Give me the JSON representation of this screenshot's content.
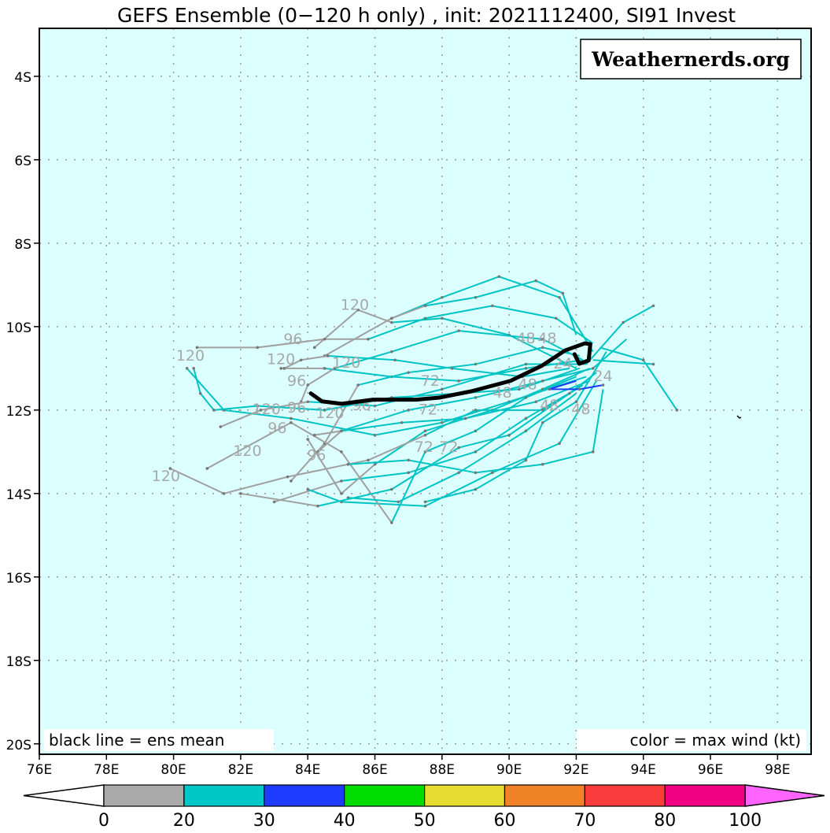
{
  "title": "GEFS Ensemble (0−120 h only) , init: 2021112400, SI91 Invest",
  "watermark": "Weathernerds.org",
  "legend_left": "black line = ens mean",
  "legend_right": "color = max wind (kt)",
  "colors": {
    "ocean": "#dcffff",
    "weak": "#a0a0a0",
    "cyan": "#00c4c4",
    "mean": "#000000",
    "label": "#a8a8a8"
  },
  "chart_data": {
    "type": "map-tracks",
    "lon_range": [
      76,
      99
    ],
    "lat_range_south": [
      2.85,
      20.25
    ],
    "lon_ticks": [
      "76E",
      "78E",
      "80E",
      "82E",
      "84E",
      "86E",
      "88E",
      "90E",
      "92E",
      "94E",
      "96E",
      "98E"
    ],
    "lat_ticks": [
      "4S",
      "6S",
      "8S",
      "10S",
      "12S",
      "14S",
      "16S",
      "18S",
      "20S"
    ],
    "grid": true,
    "colorbar": {
      "labels": [
        "0",
        "20",
        "30",
        "40",
        "50",
        "60",
        "70",
        "80",
        "100"
      ],
      "colors": [
        "#aaaaaa",
        "#00c8c8",
        "#1e3cff",
        "#00dc00",
        "#e6dc32",
        "#f08228",
        "#fa3c3c",
        "#f00082"
      ],
      "under": "#ffffff",
      "over": "#ff64ff"
    },
    "ens_mean": [
      [
        84.09,
        11.6
      ],
      [
        84.42,
        11.79
      ],
      [
        85.01,
        11.85
      ],
      [
        85.94,
        11.75
      ],
      [
        87.23,
        11.75
      ],
      [
        87.93,
        11.7
      ],
      [
        88.87,
        11.55
      ],
      [
        90.04,
        11.3
      ],
      [
        90.97,
        10.94
      ],
      [
        91.67,
        10.57
      ],
      [
        92.26,
        10.4
      ],
      [
        92.42,
        10.42
      ],
      [
        92.37,
        10.81
      ],
      [
        92.09,
        10.89
      ],
      [
        91.95,
        10.66
      ]
    ],
    "members": [
      {
        "pts": [
          [
            92.2,
            10.8
          ],
          [
            90.5,
            11.0
          ],
          [
            88.5,
            11.3
          ],
          [
            86.5,
            11.2
          ],
          [
            84.5,
            11.0
          ],
          [
            83.2,
            11.0
          ]
        ],
        "weak_from": 4
      },
      {
        "pts": [
          [
            92.0,
            11.0
          ],
          [
            90.0,
            10.2
          ],
          [
            88.0,
            9.8
          ],
          [
            86.5,
            9.9
          ],
          [
            85.5,
            9.6
          ],
          [
            84.2,
            10.5
          ]
        ],
        "weak_from": 3
      },
      {
        "pts": [
          [
            92.5,
            10.6
          ],
          [
            91.5,
            9.3
          ],
          [
            89.7,
            8.8
          ],
          [
            88.0,
            9.3
          ],
          [
            86.5,
            9.8
          ],
          [
            84.5,
            10.7
          ]
        ],
        "weak_from": 4
      },
      {
        "pts": [
          [
            92.3,
            11.2
          ],
          [
            90.0,
            11.8
          ],
          [
            88.0,
            12.3
          ],
          [
            86.0,
            12.6
          ],
          [
            83.5,
            12.2
          ],
          [
            81.5,
            12.0
          ],
          [
            80.4,
            11.0
          ]
        ],
        "weak_from": 9
      },
      {
        "pts": [
          [
            92.0,
            11.5
          ],
          [
            90.5,
            12.2
          ],
          [
            89.0,
            13.0
          ],
          [
            87.0,
            13.5
          ],
          [
            85.0,
            13.7
          ],
          [
            83.0,
            14.2
          ]
        ],
        "weak_from": 4
      },
      {
        "pts": [
          [
            92.6,
            11.3
          ],
          [
            91.5,
            12.8
          ],
          [
            89.5,
            13.5
          ],
          [
            87.5,
            14.3
          ],
          [
            85.0,
            14.2
          ],
          [
            84.0,
            13.9
          ]
        ],
        "weak_from": 9
      },
      {
        "pts": [
          [
            92.1,
            10.7
          ],
          [
            91.0,
            10.5
          ],
          [
            89.0,
            10.9
          ],
          [
            87.0,
            11.1
          ],
          [
            85.5,
            11.4
          ],
          [
            84.5,
            12.8
          ],
          [
            83.5,
            13.7
          ]
        ],
        "weak_from": 4
      },
      {
        "pts": [
          [
            92.4,
            11.0
          ],
          [
            91.0,
            11.5
          ],
          [
            89.5,
            12.0
          ],
          [
            87.5,
            12.5
          ],
          [
            86.0,
            13.3
          ],
          [
            85.0,
            14.0
          ],
          [
            84.0,
            12.7
          ]
        ],
        "weak_from": 4
      },
      {
        "pts": [
          [
            92.0,
            11.2
          ],
          [
            90.5,
            11.7
          ],
          [
            89.0,
            12.5
          ],
          [
            87.5,
            13.0
          ],
          [
            86.5,
            14.7
          ],
          [
            85.0,
            13.0
          ],
          [
            83.5,
            12.3
          ],
          [
            81.0,
            13.4
          ]
        ],
        "weak_from": 4
      },
      {
        "pts": [
          [
            92.2,
            11.4
          ],
          [
            91.0,
            12.0
          ],
          [
            89.0,
            12.0
          ],
          [
            87.5,
            12.6
          ],
          [
            85.8,
            13.2
          ],
          [
            83.4,
            13.6
          ],
          [
            81.5,
            14.0
          ],
          [
            79.9,
            13.4
          ]
        ],
        "weak_from": 3
      },
      {
        "pts": [
          [
            92.3,
            10.9
          ],
          [
            90.5,
            10.9
          ],
          [
            88.0,
            11.5
          ],
          [
            86.0,
            11.9
          ],
          [
            84.0,
            11.8
          ],
          [
            82.6,
            12.0
          ],
          [
            81.4,
            12.4
          ]
        ],
        "weak_from": 4
      },
      {
        "pts": [
          [
            92.1,
            11.0
          ],
          [
            90.3,
            11.5
          ],
          [
            88.5,
            11.6
          ],
          [
            86.5,
            11.7
          ],
          [
            84.5,
            12.0
          ],
          [
            82.5,
            11.9
          ],
          [
            81.2,
            12.0
          ],
          [
            80.8,
            11.6
          ],
          [
            80.6,
            11.0
          ]
        ],
        "weak_from": 9
      },
      {
        "pts": [
          [
            92.5,
            10.4
          ],
          [
            91.4,
            9.8
          ],
          [
            89.5,
            9.5
          ],
          [
            87.5,
            9.8
          ],
          [
            85.8,
            10.3
          ],
          [
            84.5,
            10.3
          ],
          [
            82.5,
            10.5
          ],
          [
            80.7,
            10.5
          ]
        ],
        "weak_from": 4
      },
      {
        "pts": [
          [
            93.5,
            10.3
          ],
          [
            92.5,
            11.0
          ],
          [
            91.0,
            11.3
          ],
          [
            89.0,
            11.7
          ],
          [
            87.0,
            12.0
          ],
          [
            85.0,
            12.5
          ],
          [
            84.3,
            13.0
          ]
        ],
        "weak_from": 5
      },
      {
        "pts": [
          [
            92.8,
            11.5
          ],
          [
            92.5,
            13.0
          ],
          [
            91.0,
            13.3
          ],
          [
            89.0,
            13.5
          ],
          [
            87.0,
            13.2
          ],
          [
            85.2,
            13.3
          ]
        ],
        "weak_from": 9
      },
      {
        "pts": [
          [
            92.0,
            10.2
          ],
          [
            91.6,
            9.2
          ],
          [
            90.8,
            8.9
          ],
          [
            89.0,
            9.3
          ],
          [
            87.5,
            9.5
          ],
          [
            86.5,
            9.8
          ]
        ],
        "weak_from": 4
      },
      {
        "pts": [
          [
            92.7,
            10.5
          ],
          [
            94.0,
            10.8
          ],
          [
            95.0,
            12.0
          ]
        ],
        "weak_from": 9
      },
      {
        "pts": [
          [
            92.5,
            10.8
          ],
          [
            94.3,
            10.9
          ]
        ],
        "weak_from": 9
      },
      {
        "pts": [
          [
            92.3,
            10.9
          ],
          [
            93.4,
            9.9
          ],
          [
            94.3,
            9.5
          ]
        ],
        "weak_from": 9
      },
      {
        "pts": [
          [
            92.0,
            11.6
          ],
          [
            90.5,
            12.5
          ],
          [
            88.5,
            13.5
          ],
          [
            86.7,
            14.2
          ],
          [
            85.2,
            14.1
          ]
        ],
        "weak_from": 9
      },
      {
        "pts": [
          [
            92.2,
            10.8
          ],
          [
            91.0,
            10.3
          ],
          [
            88.5,
            10.1
          ],
          [
            86.5,
            10.6
          ],
          [
            84.8,
            11.0
          ],
          [
            84.0,
            11.4
          ],
          [
            83.8,
            11.8
          ]
        ],
        "weak_from": 4
      },
      {
        "pts": [
          [
            92.4,
            11.3
          ],
          [
            90.8,
            11.8
          ],
          [
            88.7,
            12.2
          ],
          [
            86.8,
            12.3
          ],
          [
            85.0,
            12.5
          ],
          [
            84.2,
            12.6
          ]
        ],
        "weak_from": 4
      },
      {
        "pts": [
          [
            91.8,
            11.0
          ],
          [
            90.4,
            11.2
          ],
          [
            88.3,
            11.0
          ],
          [
            86.6,
            10.8
          ],
          [
            84.6,
            10.7
          ],
          [
            83.8,
            10.8
          ],
          [
            83.3,
            11.0
          ]
        ],
        "weak_from": 4
      },
      {
        "pts": [
          [
            92.6,
            11.1
          ],
          [
            91.8,
            11.6
          ],
          [
            90.0,
            12.6
          ],
          [
            88.5,
            12.9
          ],
          [
            86.5,
            13.9
          ],
          [
            84.3,
            14.3
          ],
          [
            82.0,
            14.0
          ]
        ],
        "weak_from": 5
      },
      {
        "pts": [
          [
            92.9,
            10.6
          ],
          [
            92.0,
            11.8
          ],
          [
            91.0,
            12.3
          ],
          [
            90.5,
            13.2
          ],
          [
            89.0,
            13.9
          ],
          [
            87.5,
            14.2
          ]
        ],
        "weak_from": 9
      },
      {
        "pts": [
          [
            92.0,
            11.3
          ],
          [
            91.2,
            11.5
          ],
          [
            92.1,
            11.5
          ],
          [
            92.8,
            11.4
          ]
        ],
        "weak_from": 9,
        "strong": true
      }
    ],
    "hour_labels": [
      {
        "t": "120",
        "lon": 80.5,
        "lat": 10.81
      },
      {
        "t": "120",
        "lon": 83.2,
        "lat": 10.9
      },
      {
        "t": "120",
        "lon": 85.4,
        "lat": 9.6
      },
      {
        "t": "120",
        "lon": 85.15,
        "lat": 10.98
      },
      {
        "t": "120",
        "lon": 82.77,
        "lat": 12.1
      },
      {
        "t": "120",
        "lon": 84.66,
        "lat": 12.19
      },
      {
        "t": "120",
        "lon": 82.2,
        "lat": 13.1
      },
      {
        "t": "120",
        "lon": 79.77,
        "lat": 13.7
      },
      {
        "t": "96",
        "lon": 83.56,
        "lat": 10.42
      },
      {
        "t": "96",
        "lon": 83.67,
        "lat": 11.42
      },
      {
        "t": "96",
        "lon": 83.09,
        "lat": 12.32
      },
      {
        "t": "96",
        "lon": 84.26,
        "lat": 13.2
      },
      {
        "t": "96",
        "lon": 83.67,
        "lat": 12.17
      },
      {
        "t": "96",
        "lon": 85.6,
        "lat": 12.0
      },
      {
        "t": "72",
        "lon": 87.65,
        "lat": 11.42
      },
      {
        "t": "72",
        "lon": 87.58,
        "lat": 12.11
      },
      {
        "t": "72",
        "lon": 87.46,
        "lat": 13.0
      },
      {
        "t": "72",
        "lon": 88.2,
        "lat": 13.0
      },
      {
        "t": "48",
        "lon": 90.5,
        "lat": 10.4
      },
      {
        "t": "48",
        "lon": 90.97,
        "lat": 10.4
      },
      {
        "t": "48",
        "lon": 90.55,
        "lat": 11.5
      },
      {
        "t": "48",
        "lon": 89.8,
        "lat": 11.7
      },
      {
        "t": "48",
        "lon": 92.14,
        "lat": 12.1
      },
      {
        "t": "48",
        "lon": 91.2,
        "lat": 12.0
      },
      {
        "t": "24",
        "lon": 91.6,
        "lat": 11.0
      },
      {
        "t": "24",
        "lon": 92.8,
        "lat": 11.3
      }
    ]
  }
}
